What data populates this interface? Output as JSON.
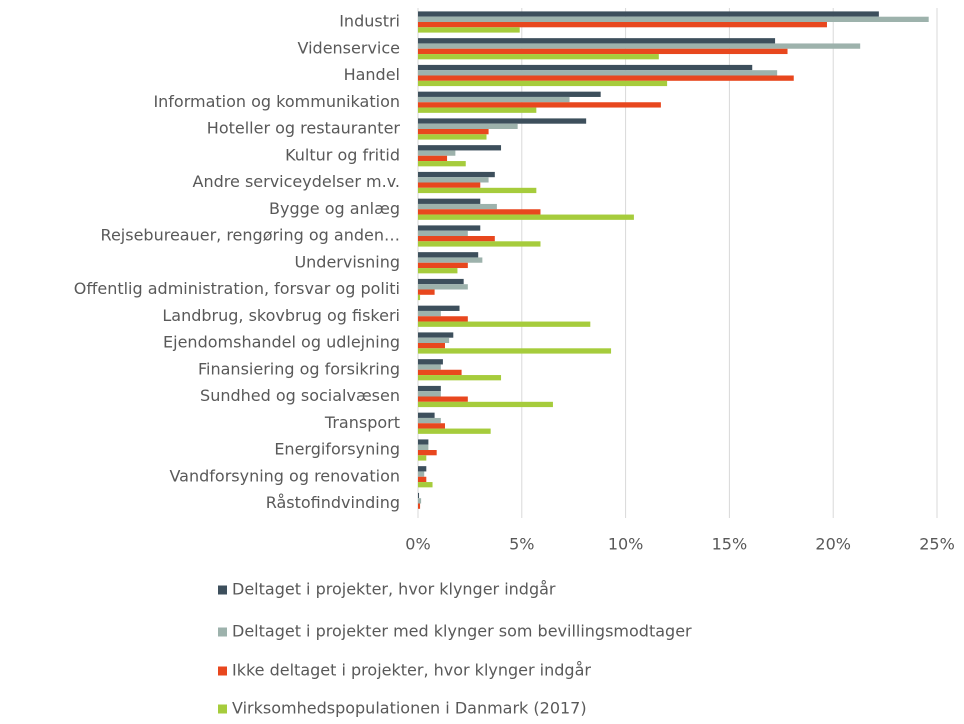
{
  "chart_data": {
    "type": "bar",
    "orientation": "horizontal",
    "categories": [
      "Industri",
      "Videnservice",
      "Handel",
      "Information og kommunikation",
      "Hoteller og restauranter",
      "Kultur og fritid",
      "Andre serviceydelser m.v.",
      "Bygge og anlæg",
      "Rejsebureauer, rengøring og anden…",
      "Undervisning",
      "Offentlig administration, forsvar og politi",
      "Landbrug, skovbrug og fiskeri",
      "Ejendomshandel og udlejning",
      "Finansiering og forsikring",
      "Sundhed og socialvæsen",
      "Transport",
      "Energiforsyning",
      "Vandforsyning og renovation",
      "Råstofindvinding"
    ],
    "series": [
      {
        "name": "Deltaget i projekter, hvor klynger indgår",
        "color": "#3d4f5c",
        "values": [
          22.2,
          17.2,
          16.1,
          8.8,
          8.1,
          4.0,
          3.7,
          3.0,
          3.0,
          2.9,
          2.2,
          2.0,
          1.7,
          1.2,
          1.1,
          0.8,
          0.5,
          0.4,
          0.05
        ]
      },
      {
        "name": "Deltaget i projekter med klynger som bevillingsmodtager",
        "color": "#9db2ac",
        "values": [
          24.6,
          21.3,
          17.3,
          7.3,
          4.8,
          1.8,
          3.4,
          3.8,
          2.4,
          3.1,
          2.4,
          1.1,
          1.5,
          1.1,
          1.1,
          1.1,
          0.5,
          0.3,
          0.15
        ]
      },
      {
        "name": "Ikke deltaget i projekter, hvor klynger indgår",
        "color": "#e8471e",
        "values": [
          19.7,
          17.8,
          18.1,
          11.7,
          3.4,
          1.4,
          3.0,
          5.9,
          3.7,
          2.4,
          0.8,
          2.4,
          1.3,
          2.1,
          2.4,
          1.3,
          0.9,
          0.4,
          0.1
        ]
      },
      {
        "name": "Virksomhedspopulationen i Danmark (2017)",
        "color": "#a6cc3c",
        "values": [
          4.9,
          11.6,
          12.0,
          5.7,
          3.3,
          2.3,
          5.7,
          10.4,
          5.9,
          1.9,
          0.1,
          8.3,
          9.3,
          4.0,
          6.5,
          3.5,
          0.4,
          0.7,
          0
        ]
      }
    ],
    "xlim": [
      0,
      25
    ],
    "xticks": [
      {
        "value": 0,
        "label": "0%"
      },
      {
        "value": 5,
        "label": "5%"
      },
      {
        "value": 10,
        "label": "10%"
      },
      {
        "value": 15,
        "label": "15%"
      },
      {
        "value": 20,
        "label": "20%"
      },
      {
        "value": 25,
        "label": "25%"
      }
    ],
    "grid": true,
    "legend": "bottom"
  }
}
